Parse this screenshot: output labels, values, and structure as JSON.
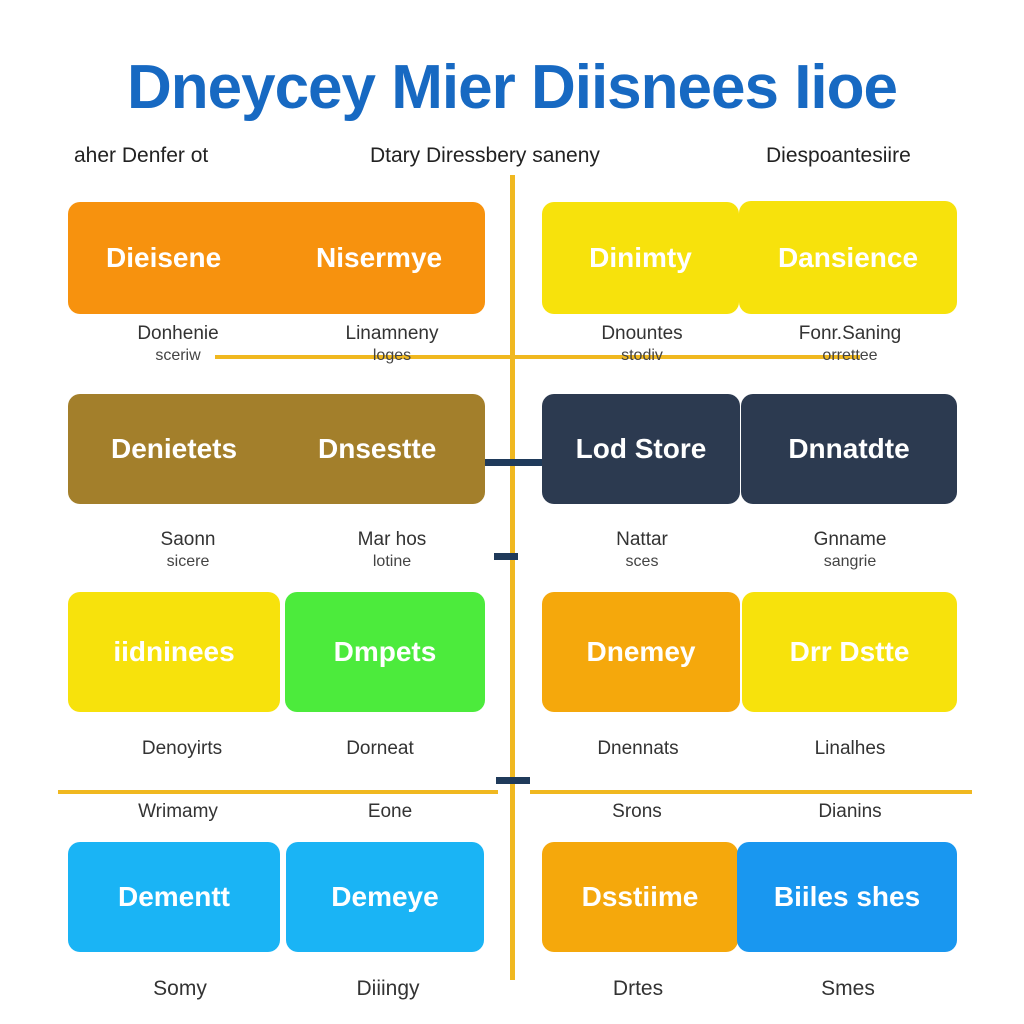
{
  "title": "Dneycey Mier Diisnees Iioe",
  "colors": {
    "title": "#1769c2",
    "divider": "#f0b820",
    "connector": "#1f3a5a",
    "orange": "#f7920e",
    "yellow": "#f7e20c",
    "brown": "#a37f2b",
    "navy": "#2c3a50",
    "green": "#4ceb3c",
    "amber": "#f5a80c",
    "cyan": "#1ab4f5",
    "blue": "#1997f0"
  },
  "headers": {
    "left": "aher Denfer ot",
    "center": "Dtary  Diressbery saneny",
    "right": "Diespoantesiire"
  },
  "rows": [
    {
      "boxes": [
        {
          "text": "Dieisene",
          "color": "#f7920e"
        },
        {
          "text": "Nisermye",
          "color": "#f7920e"
        },
        {
          "text": "Dinimty",
          "color": "#f7e20c"
        },
        {
          "text": "Dansience",
          "color": "#f7e20c"
        }
      ],
      "labels": [
        {
          "main": "Donhenie",
          "sub": "sceriw"
        },
        {
          "main": "Linamneny",
          "sub": "loges"
        },
        {
          "main": "Dnountes",
          "sub": "stodiv"
        },
        {
          "main": "Fonr.Saning",
          "sub": "orrettee"
        }
      ]
    },
    {
      "boxes": [
        {
          "text": "Denietets",
          "color": "#a37f2b"
        },
        {
          "text": "Dnsestte",
          "color": "#a37f2b"
        },
        {
          "text": "Lod Store",
          "color": "#2c3a50"
        },
        {
          "text": "Dnnatdte",
          "color": "#2c3a50"
        }
      ],
      "labels": [
        {
          "main": "Saonn",
          "sub": "sicere"
        },
        {
          "main": "Mar hos",
          "sub": "lotine"
        },
        {
          "main": "Nattar",
          "sub": "sces"
        },
        {
          "main": "Gnname",
          "sub": "sangrie"
        }
      ]
    },
    {
      "boxes": [
        {
          "text": "iidninees",
          "color": "#f7e20c"
        },
        {
          "text": "Dmpets",
          "color": "#4ceb3c"
        },
        {
          "text": "Dnemey",
          "color": "#f5a80c"
        },
        {
          "text": "Drr Dstte",
          "color": "#f7e20c"
        }
      ],
      "labels": [
        {
          "main": "Denoyirts",
          "sub": ""
        },
        {
          "main": "Dorneat",
          "sub": ""
        },
        {
          "main": "Dnennats",
          "sub": ""
        },
        {
          "main": "Linalhes",
          "sub": ""
        }
      ]
    },
    {
      "top_labels": [
        "Wrimamy",
        "Eone",
        "Srons",
        "Dianins"
      ],
      "boxes": [
        {
          "text": "Dementt",
          "color": "#1ab4f5"
        },
        {
          "text": "Demeye",
          "color": "#1ab4f5"
        },
        {
          "text": "Dsstiime",
          "color": "#f5a80c"
        },
        {
          "text": "Biiles shes",
          "color": "#1997f0"
        }
      ],
      "labels": [
        {
          "main": "Somy",
          "sub": ""
        },
        {
          "main": "Diiingy",
          "sub": ""
        },
        {
          "main": "Drtes",
          "sub": ""
        },
        {
          "main": "Smes",
          "sub": ""
        }
      ]
    }
  ]
}
